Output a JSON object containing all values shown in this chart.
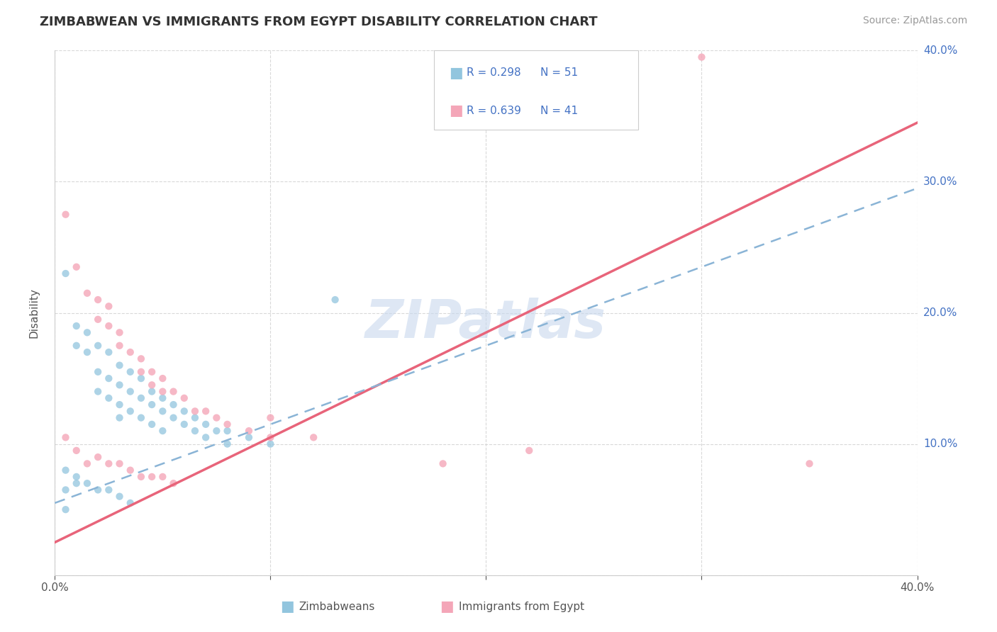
{
  "title": "ZIMBABWEAN VS IMMIGRANTS FROM EGYPT DISABILITY CORRELATION CHART",
  "source": "Source: ZipAtlas.com",
  "ylabel": "Disability",
  "x_min": 0.0,
  "x_max": 0.4,
  "y_min": 0.0,
  "y_max": 0.4,
  "watermark": "ZIPatlas",
  "blue_color": "#92c5de",
  "pink_color": "#f4a6b8",
  "blue_line_color": "#5b9bd5",
  "pink_line_color": "#e8647a",
  "gray_dash_color": "#8ab4d6",
  "background_color": "#ffffff",
  "grid_color": "#d0d0d0",
  "title_color": "#333333",
  "label_color": "#555555",
  "legend_text_color": "#4472C4",
  "zim_line_x0": 0.0,
  "zim_line_y0": 0.055,
  "zim_line_x1": 0.4,
  "zim_line_y1": 0.295,
  "egy_line_x0": 0.0,
  "egy_line_y0": 0.025,
  "egy_line_x1": 0.4,
  "egy_line_y1": 0.345,
  "zimbabwean_points": [
    [
      0.005,
      0.23
    ],
    [
      0.01,
      0.19
    ],
    [
      0.01,
      0.175
    ],
    [
      0.015,
      0.185
    ],
    [
      0.015,
      0.17
    ],
    [
      0.02,
      0.175
    ],
    [
      0.02,
      0.155
    ],
    [
      0.02,
      0.14
    ],
    [
      0.025,
      0.17
    ],
    [
      0.025,
      0.15
    ],
    [
      0.025,
      0.135
    ],
    [
      0.03,
      0.16
    ],
    [
      0.03,
      0.145
    ],
    [
      0.03,
      0.13
    ],
    [
      0.03,
      0.12
    ],
    [
      0.035,
      0.155
    ],
    [
      0.035,
      0.14
    ],
    [
      0.035,
      0.125
    ],
    [
      0.04,
      0.15
    ],
    [
      0.04,
      0.135
    ],
    [
      0.04,
      0.12
    ],
    [
      0.045,
      0.14
    ],
    [
      0.045,
      0.13
    ],
    [
      0.045,
      0.115
    ],
    [
      0.05,
      0.135
    ],
    [
      0.05,
      0.125
    ],
    [
      0.05,
      0.11
    ],
    [
      0.055,
      0.13
    ],
    [
      0.055,
      0.12
    ],
    [
      0.06,
      0.125
    ],
    [
      0.06,
      0.115
    ],
    [
      0.065,
      0.12
    ],
    [
      0.065,
      0.11
    ],
    [
      0.07,
      0.115
    ],
    [
      0.07,
      0.105
    ],
    [
      0.075,
      0.11
    ],
    [
      0.08,
      0.11
    ],
    [
      0.08,
      0.1
    ],
    [
      0.09,
      0.105
    ],
    [
      0.1,
      0.1
    ],
    [
      0.005,
      0.08
    ],
    [
      0.01,
      0.075
    ],
    [
      0.01,
      0.07
    ],
    [
      0.015,
      0.07
    ],
    [
      0.02,
      0.065
    ],
    [
      0.025,
      0.065
    ],
    [
      0.03,
      0.06
    ],
    [
      0.035,
      0.055
    ],
    [
      0.13,
      0.21
    ],
    [
      0.005,
      0.065
    ],
    [
      0.005,
      0.05
    ]
  ],
  "egypt_points": [
    [
      0.005,
      0.275
    ],
    [
      0.01,
      0.235
    ],
    [
      0.015,
      0.215
    ],
    [
      0.02,
      0.21
    ],
    [
      0.025,
      0.205
    ],
    [
      0.02,
      0.195
    ],
    [
      0.025,
      0.19
    ],
    [
      0.03,
      0.185
    ],
    [
      0.03,
      0.175
    ],
    [
      0.035,
      0.17
    ],
    [
      0.04,
      0.165
    ],
    [
      0.04,
      0.155
    ],
    [
      0.045,
      0.155
    ],
    [
      0.045,
      0.145
    ],
    [
      0.05,
      0.15
    ],
    [
      0.05,
      0.14
    ],
    [
      0.055,
      0.14
    ],
    [
      0.06,
      0.135
    ],
    [
      0.065,
      0.125
    ],
    [
      0.07,
      0.125
    ],
    [
      0.075,
      0.12
    ],
    [
      0.08,
      0.115
    ],
    [
      0.09,
      0.11
    ],
    [
      0.1,
      0.12
    ],
    [
      0.1,
      0.105
    ],
    [
      0.12,
      0.105
    ],
    [
      0.005,
      0.105
    ],
    [
      0.01,
      0.095
    ],
    [
      0.015,
      0.085
    ],
    [
      0.02,
      0.09
    ],
    [
      0.025,
      0.085
    ],
    [
      0.03,
      0.085
    ],
    [
      0.035,
      0.08
    ],
    [
      0.04,
      0.075
    ],
    [
      0.045,
      0.075
    ],
    [
      0.05,
      0.075
    ],
    [
      0.055,
      0.07
    ],
    [
      0.18,
      0.085
    ],
    [
      0.35,
      0.085
    ],
    [
      0.3,
      0.395
    ],
    [
      0.22,
      0.095
    ]
  ]
}
